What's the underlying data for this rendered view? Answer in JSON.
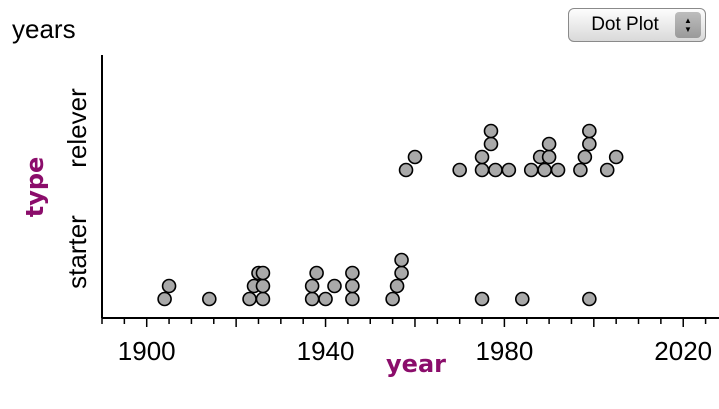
{
  "header": {
    "top_label": "years"
  },
  "plot_type_menu": {
    "selected": "Dot Plot",
    "stepper_icon": "up-down-arrows-icon"
  },
  "colors": {
    "axis_title": "#8b0d6b",
    "dot_fill": "#a9a9a9",
    "dot_stroke": "#000000"
  },
  "chart_data": {
    "type": "scatter",
    "style": "dot plot",
    "xlabel": "year",
    "ylabel": "type",
    "xlim": [
      1890,
      2028
    ],
    "x_ticks": [
      1900,
      1940,
      1980,
      2020
    ],
    "categories": [
      "starter",
      "relever"
    ],
    "series": [
      {
        "category": "starter",
        "values": [
          1904,
          1905,
          1914,
          1923,
          1924,
          1925,
          1926,
          1926,
          1926,
          1937,
          1937,
          1938,
          1940,
          1942,
          1946,
          1946,
          1946,
          1955,
          1956,
          1957,
          1957,
          1975,
          1984,
          1999
        ]
      },
      {
        "category": "relever",
        "values": [
          1958,
          1960,
          1970,
          1975,
          1975,
          1977,
          1977,
          1978,
          1981,
          1986,
          1988,
          1989,
          1990,
          1990,
          1992,
          1997,
          1998,
          1999,
          1999,
          2003,
          2005
        ]
      }
    ],
    "grid": false,
    "legend": "none"
  }
}
